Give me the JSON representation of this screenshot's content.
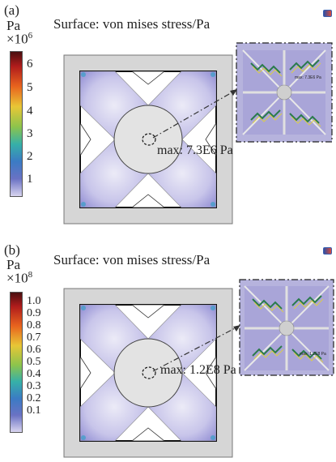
{
  "panel_a": {
    "tag": "(a)",
    "title": "Surface: von mises stress/Pa",
    "unit": "Pa",
    "scale_base": "×10",
    "scale_exp": "6",
    "ticks": [
      "6",
      "5",
      "4",
      "3",
      "2",
      "1"
    ],
    "max_label": "max: 7.3E6 Pa",
    "inset_label": "max: 7.3E6 Pa"
  },
  "panel_b": {
    "tag": "(b)",
    "title": "Surface: von mises stress/Pa",
    "unit": "Pa",
    "scale_base": "×10",
    "scale_exp": "8",
    "ticks": [
      "1.0",
      "0.9",
      "0.8",
      "0.7",
      "0.6",
      "0.5",
      "0.4",
      "0.3",
      "0.2",
      "0.1"
    ],
    "max_label": "max: 1.2E8 Pa",
    "inset_label": "max: 1.2E8 Pa"
  },
  "colors": {
    "stress_low": "#9a96d8",
    "stress_mid": "#d6d3ee",
    "frame": "#d4d4d4",
    "colorbar": [
      "#4a0f10",
      "#b01c1c",
      "#e8641e",
      "#e8c636",
      "#8cc44c",
      "#36b0a8",
      "#3b7bc4",
      "#6a72c4",
      "#d8d4ef"
    ]
  }
}
